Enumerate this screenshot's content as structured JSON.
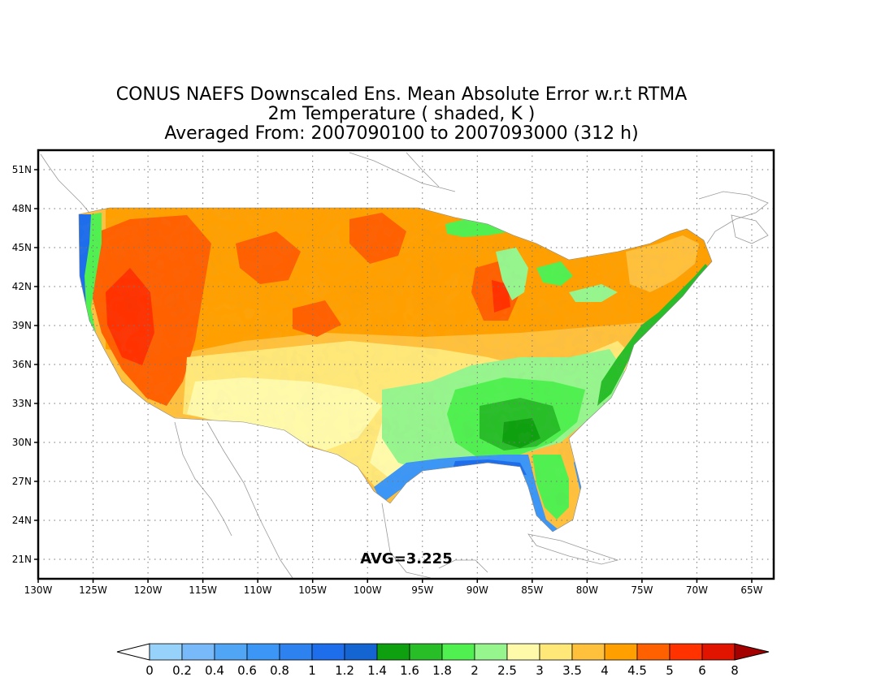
{
  "title": {
    "line1": "CONUS NAEFS Downscaled Ens. Mean Absolute Error w.r.t RTMA",
    "line2": "2m Temperature ( shaded, K )",
    "line3": "Averaged From: 2007090100 to 2007093000 (312 h)"
  },
  "annotation": {
    "avg_text": "AVG=3.225"
  },
  "map": {
    "lon_range": [
      -130,
      -63
    ],
    "lat_range": [
      19.5,
      52.5
    ],
    "lon_ticks": [
      "130W",
      "125W",
      "120W",
      "115W",
      "110W",
      "105W",
      "100W",
      "95W",
      "90W",
      "85W",
      "80W",
      "75W",
      "70W",
      "65W"
    ],
    "lat_ticks": [
      "21N",
      "24N",
      "27N",
      "30N",
      "33N",
      "36N",
      "39N",
      "42N",
      "45N",
      "48N",
      "51N"
    ],
    "grid": "dotted"
  },
  "colorbar": {
    "labels": [
      "0",
      "0.2",
      "0.4",
      "0.6",
      "0.8",
      "1",
      "1.2",
      "1.4",
      "1.6",
      "1.8",
      "2",
      "2.5",
      "3",
      "3.5",
      "4",
      "4.5",
      "5",
      "6",
      "8"
    ],
    "colors": [
      "#96d2fa",
      "#78b9fa",
      "#50a5f5",
      "#3c96f5",
      "#2d82f0",
      "#1e6eeb",
      "#1464d2",
      "#0fa00f",
      "#28be28",
      "#50f050",
      "#96f58c",
      "#fffaaa",
      "#ffe878",
      "#ffc03c",
      "#ffa000",
      "#ff6000",
      "#ff3200",
      "#e11400",
      "#c00000"
    ],
    "under_color": "#ffffff",
    "over_color": "#a50000"
  },
  "colors": {
    "border": "#000000",
    "grid": "#777777",
    "coastline": "#999999"
  }
}
